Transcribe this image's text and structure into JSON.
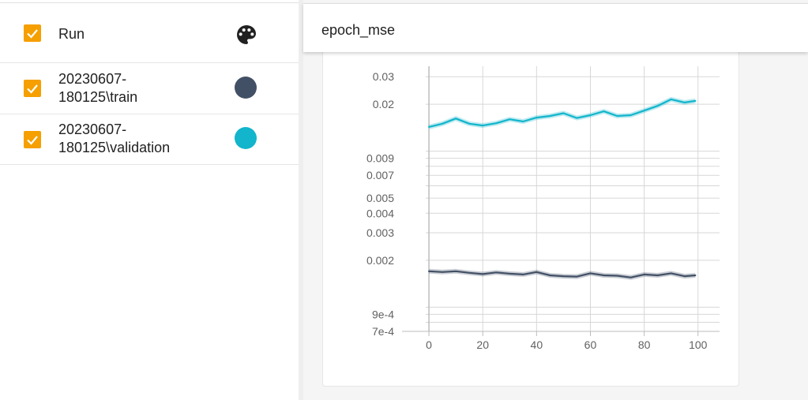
{
  "runs": {
    "header_label": "Run",
    "items": [
      {
        "label": "20230607-\n180125\\train",
        "color": "#425066"
      },
      {
        "label": "20230607-\n180125\\validation",
        "color": "#12b5cb"
      }
    ]
  },
  "panel": {
    "title": "epoch_mse"
  },
  "colors": {
    "checkbox": "#f59f00",
    "train": "#425066",
    "validation": "#12b5cb"
  },
  "chart_data": {
    "type": "line",
    "y_scale": "log",
    "xlim": [
      -10,
      108
    ],
    "ylim": [
      0.0007,
      0.035
    ],
    "x_ticks": [
      0,
      20,
      40,
      60,
      80,
      100
    ],
    "y_tick_labels": [
      "0.03",
      "0.02",
      "0.009",
      "0.007",
      "0.005",
      "0.004",
      "0.003",
      "0.002",
      "9e-4",
      "7e-4"
    ],
    "y_tick_values": [
      0.03,
      0.02,
      0.009,
      0.007,
      0.005,
      0.004,
      0.003,
      0.002,
      0.0009,
      0.0007
    ],
    "y_minor_values": [
      0.01,
      0.008,
      0.006,
      0.001,
      0.0008
    ],
    "grid": true,
    "series": [
      {
        "color": "#12b5cb",
        "x": [
          0,
          5,
          10,
          15,
          20,
          25,
          30,
          35,
          40,
          45,
          50,
          55,
          60,
          65,
          70,
          75,
          80,
          85,
          90,
          95,
          99
        ],
        "y": [
          0.0143,
          0.015,
          0.0162,
          0.015,
          0.0146,
          0.0151,
          0.016,
          0.0155,
          0.0164,
          0.0168,
          0.0175,
          0.0163,
          0.017,
          0.018,
          0.0168,
          0.017,
          0.0182,
          0.0195,
          0.0215,
          0.0205,
          0.021
        ]
      },
      {
        "color": "#425066",
        "x": [
          0,
          5,
          10,
          15,
          20,
          25,
          30,
          35,
          40,
          45,
          50,
          55,
          60,
          65,
          70,
          75,
          80,
          85,
          90,
          95,
          99
        ],
        "y": [
          0.0017,
          0.00168,
          0.0017,
          0.00166,
          0.00163,
          0.00167,
          0.00164,
          0.00162,
          0.00168,
          0.0016,
          0.00158,
          0.00157,
          0.00165,
          0.0016,
          0.00159,
          0.00155,
          0.00162,
          0.0016,
          0.00165,
          0.00158,
          0.0016
        ]
      }
    ]
  }
}
